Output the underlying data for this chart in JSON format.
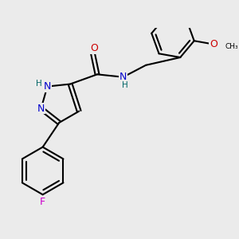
{
  "bg_color": "#ebebeb",
  "bond_color": "#000000",
  "bond_width": 1.5,
  "dbo": 0.04,
  "atom_colors": {
    "N": "#0000cc",
    "O": "#cc0000",
    "F": "#cc00cc",
    "H": "#006666",
    "C": "#000000"
  },
  "fs": 9,
  "fs_small": 7.5
}
